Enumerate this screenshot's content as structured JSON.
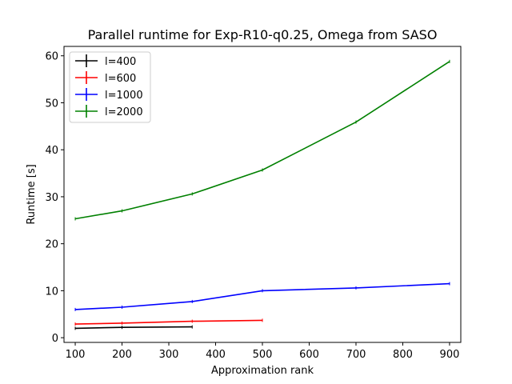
{
  "chart_data": {
    "type": "line",
    "title": "Parallel runtime for Exp-R10-q0.25, Omega from SASO",
    "xlabel": "Approximation rank",
    "ylabel": "Runtime [s]",
    "xlim": [
      76,
      924
    ],
    "ylim": [
      -1,
      62
    ],
    "xticks": [
      100,
      200,
      300,
      400,
      500,
      600,
      700,
      800,
      900
    ],
    "yticks": [
      0,
      10,
      20,
      30,
      40,
      50,
      60
    ],
    "grid": false,
    "legend_position": "top-left",
    "series": [
      {
        "name": "l=400",
        "color": "#000000",
        "x": [
          100,
          200,
          350
        ],
        "y": [
          2.0,
          2.2,
          2.3
        ]
      },
      {
        "name": "l=600",
        "color": "#ff0000",
        "x": [
          100,
          200,
          350,
          500
        ],
        "y": [
          2.9,
          3.1,
          3.5,
          3.7
        ]
      },
      {
        "name": "l=1000",
        "color": "#0000ff",
        "x": [
          100,
          200,
          350,
          500,
          700,
          900
        ],
        "y": [
          6.0,
          6.5,
          7.7,
          10.0,
          10.6,
          11.5
        ]
      },
      {
        "name": "l=2000",
        "color": "#008000",
        "x": [
          100,
          200,
          350,
          500,
          700,
          900
        ],
        "y": [
          25.3,
          27.0,
          30.6,
          35.7,
          45.9,
          58.8
        ]
      }
    ]
  }
}
